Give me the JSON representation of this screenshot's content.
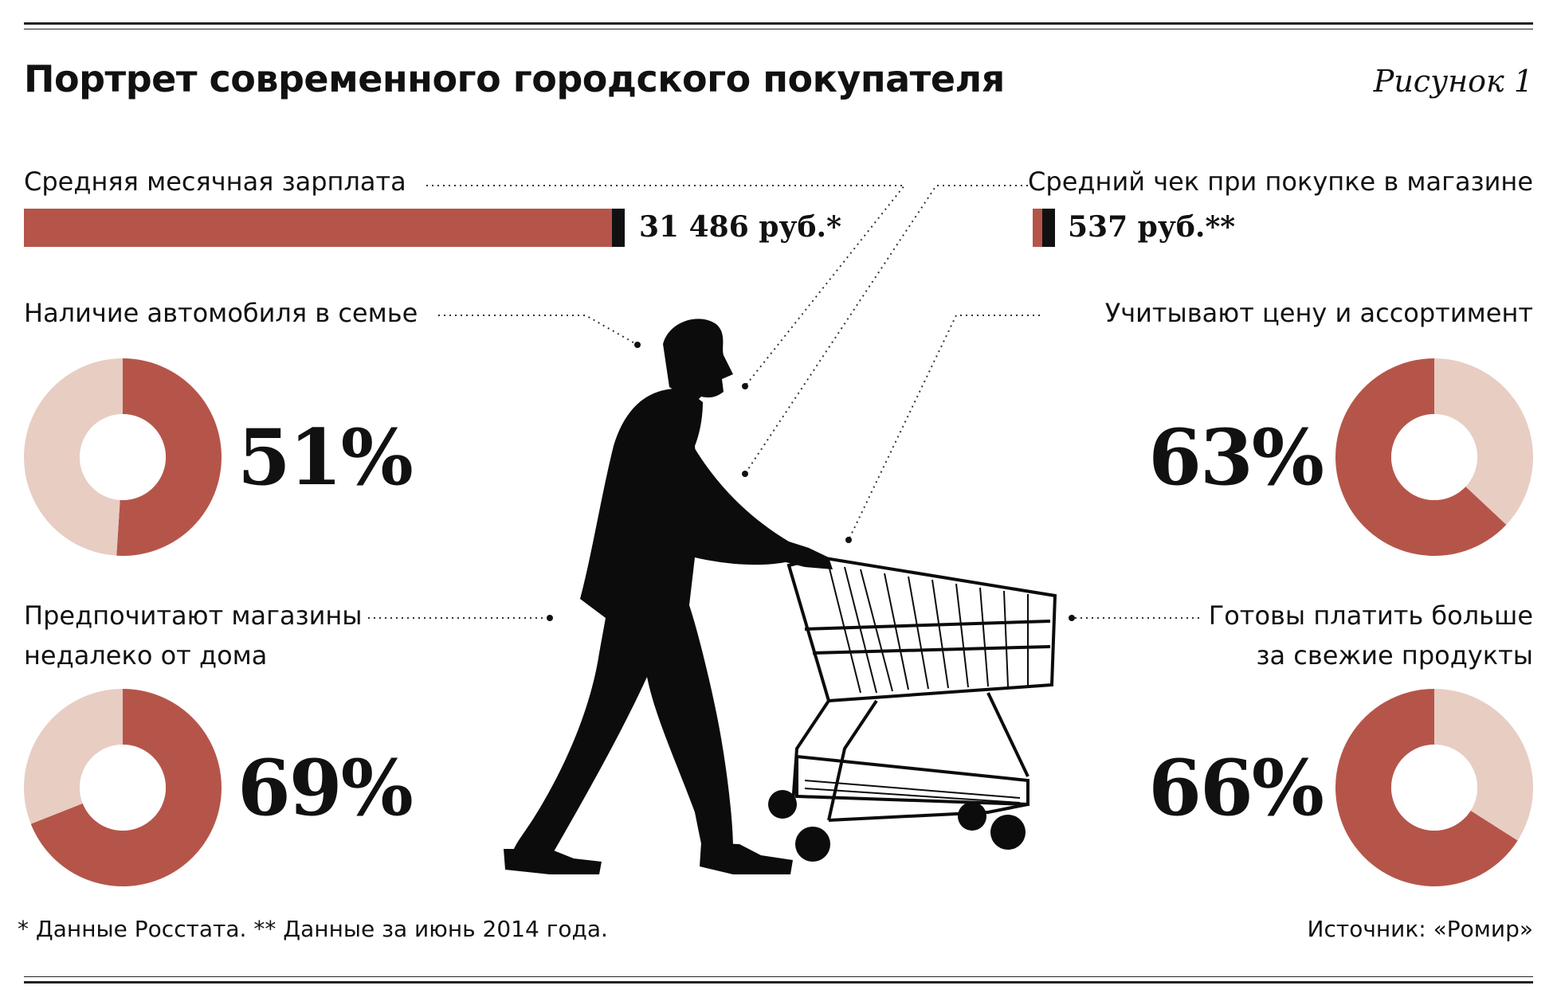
{
  "title": "Портрет современного городского покупателя",
  "figure_label": "Рисунок 1",
  "colors": {
    "accent": "#b5554a",
    "light": "#e8cdc3",
    "text": "#111111"
  },
  "chart_data": [
    {
      "type": "bar",
      "label": "Средняя месячная зарплата",
      "value_text": "31 486 руб.*",
      "values": [
        31486
      ],
      "unit": "руб."
    },
    {
      "type": "bar",
      "label": "Средний чек при покупке в магазине",
      "value_text": "537 руб.**",
      "values": [
        537
      ],
      "unit": "руб."
    },
    {
      "type": "pie",
      "label": "Наличие автомобиля в семье",
      "value_text": "51%",
      "values": [
        51,
        49
      ]
    },
    {
      "type": "pie",
      "label": "Учитывают цену и ассортимент",
      "value_text": "63%",
      "values": [
        63,
        37
      ]
    },
    {
      "type": "pie",
      "label": "Предпочитают магазины недалеко от дома",
      "label_lines": [
        "Предпочитают магазины",
        "недалеко от дома"
      ],
      "value_text": "69%",
      "values": [
        69,
        31
      ]
    },
    {
      "type": "pie",
      "label": "Готовы платить больше за свежие продукты",
      "label_lines": [
        "Готовы платить больше",
        "за свежие продукты"
      ],
      "value_text": "66%",
      "values": [
        66,
        34
      ]
    }
  ],
  "footnote_left": "* Данные Росстата. ** Данные за июнь 2014 года.",
  "footnote_right": "Источник: «Ромир»",
  "illustration": {
    "icon": "shopper-with-cart-silhouette"
  }
}
